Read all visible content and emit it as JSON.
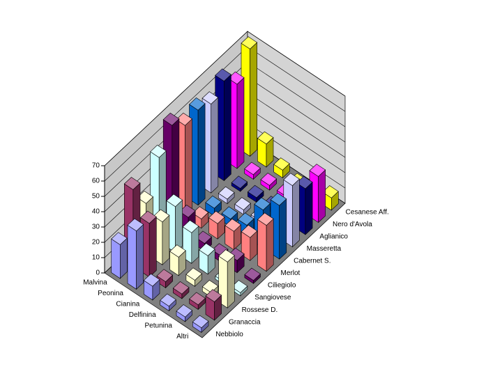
{
  "chart_data": {
    "type": "bar3d",
    "categories": [
      "Malvina",
      "Peonina",
      "Cianina",
      "Delfinina",
      "Petunina",
      "Altri"
    ],
    "series": [
      {
        "name": "Nebbiolo",
        "color": "#9999ff",
        "values": [
          22,
          38,
          9,
          3,
          3,
          3
        ]
      },
      {
        "name": "Granaccia",
        "color": "#993366",
        "values": [
          50,
          35,
          4,
          3,
          3,
          12
        ]
      },
      {
        "name": "Rossese D.",
        "color": "#ffffcc",
        "values": [
          33,
          28,
          12,
          4,
          3,
          30
        ]
      },
      {
        "name": "Sangiovese",
        "color": "#ccffff",
        "values": [
          55,
          30,
          20,
          12,
          2,
          2
        ]
      },
      {
        "name": "Ciliegiolo",
        "color": "#660066",
        "values": [
          68,
          15,
          5,
          4,
          8,
          2
        ]
      },
      {
        "name": "Merlot",
        "color": "#ff8080",
        "values": [
          60,
          6,
          10,
          12,
          15,
          30
        ]
      },
      {
        "name": "Cabernet S.",
        "color": "#0066cc",
        "values": [
          62,
          5,
          5,
          8,
          25,
          35
        ]
      },
      {
        "name": "Masseretta",
        "color": "#ccccff",
        "values": [
          58,
          3,
          3,
          3,
          3,
          40
        ]
      },
      {
        "name": "Aglianico",
        "color": "#000080",
        "values": [
          65,
          2,
          3,
          3,
          3,
          30
        ]
      },
      {
        "name": "Nero d'Avola",
        "color": "#ff00ff",
        "values": [
          55,
          3,
          3,
          3,
          10,
          30
        ]
      },
      {
        "name": "Cesanese Aff.",
        "color": "#ffff00",
        "values": [
          70,
          15,
          5,
          2,
          3,
          8
        ]
      }
    ],
    "ylim": [
      0,
      70
    ],
    "yticks": [
      0,
      10,
      20,
      30,
      40,
      50,
      60,
      70
    ],
    "grid": true
  }
}
